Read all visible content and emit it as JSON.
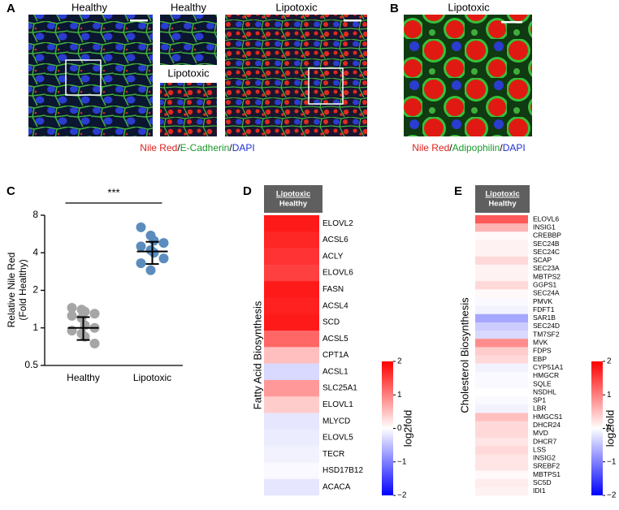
{
  "panels": [
    {
      "label": "A",
      "titles": [
        "Healthy",
        "Healthy",
        "Lipotoxic",
        "Lipotoxic"
      ],
      "caption": [
        "Nile Red",
        "/",
        "E-Cadherin",
        "/",
        "DAPI"
      ]
    },
    {
      "label": "B",
      "titles": [
        "Lipotoxic"
      ],
      "caption": [
        "Nile Red",
        "/",
        "Adipophilin",
        "/",
        "DAPI"
      ]
    }
  ],
  "chart_data": [
    {
      "type": "strip",
      "panel": "C",
      "annotation": "***",
      "y_label": [
        "Relative Nile Red",
        "(Fold Healthy)"
      ],
      "categories": [
        "Healthy",
        "Lipotoxic"
      ],
      "groups": [
        {
          "color": "#a6a6a6",
          "values": [
            1.45,
            1.4,
            1.35,
            1.3,
            1.25,
            1.2,
            1.05,
            1.0,
            0.95,
            0.9,
            0.85,
            0.75
          ],
          "mean": 1.0,
          "lower": 0.8,
          "upper": 1.22
        },
        {
          "color": "#5b8cbd",
          "values": [
            6.4,
            5.5,
            5.0,
            4.8,
            4.5,
            4.2,
            4.0,
            3.6,
            3.3,
            2.9
          ],
          "mean": 4.1,
          "lower": 3.25,
          "upper": 4.9
        }
      ],
      "log_scale": true,
      "ylim": [
        0.5,
        8
      ],
      "yticks": [
        0.5,
        1,
        2,
        4,
        8
      ]
    },
    {
      "type": "heatmap",
      "panel": "D",
      "header": [
        "Lipotoxic",
        "Healthy"
      ],
      "y_label": "Fatty Acid Biosynthesis",
      "categories": [
        "ELOVL2",
        "ACSL6",
        "ACLY",
        "ELOVL6",
        "FASN",
        "ACSL4",
        "SCD",
        "ACSL5",
        "CPT1A",
        "ACSL1",
        "SLC25A1",
        "ELOVL1",
        "MLYCD",
        "ELOVL5",
        "TECR",
        "HSD17B12",
        "ACACA"
      ],
      "values": [
        1.8,
        1.7,
        1.6,
        1.5,
        1.8,
        1.75,
        1.8,
        1.2,
        0.5,
        -0.3,
        0.8,
        0.4,
        -0.2,
        -0.15,
        -0.1,
        -0.05,
        -0.2
      ],
      "colormap": [
        "#0000ff",
        "#ffffff",
        "#ff0000"
      ],
      "clim": [
        -2,
        2
      ],
      "colorbar_label": "log2fold",
      "colorbar_ticks": [
        2,
        1,
        0,
        {
          "value": -1,
          "label": "−1"
        },
        {
          "value": -2,
          "label": "−2"
        }
      ]
    },
    {
      "type": "heatmap",
      "panel": "E",
      "header": [
        "Lipotoxic",
        "Healthy"
      ],
      "y_label": "Cholesterol Biosynthesis",
      "categories": [
        "ELOVL6",
        "INSIG1",
        "CREBBP",
        "SEC24B",
        "SEC24C",
        "SCAP",
        "SEC23A",
        "MBTPS2",
        "GGPS1",
        "SEC24A",
        "PMVK",
        "FDFT1",
        "SAR1B",
        "SEC24D",
        "TM7SF2",
        "MVK",
        "FDPS",
        "EBP",
        "CYP51A1",
        "HMGCR",
        "SQLE",
        "NSDHL",
        "SP1",
        "LBR",
        "HMGCS1",
        "DHCR24",
        "MVD",
        "DHCR7",
        "LSS",
        "INSIG2",
        "SREBF2",
        "MBTPS1",
        "SC5D",
        "IDI1"
      ],
      "values": [
        1.3,
        0.6,
        0.05,
        0.1,
        0.1,
        0.3,
        0.1,
        0.1,
        0.3,
        0.05,
        -0.05,
        -0.1,
        -0.7,
        -0.4,
        -0.3,
        0.9,
        0.4,
        0.3,
        -0.1,
        -0.05,
        -0.05,
        0,
        -0.05,
        -0.1,
        0.5,
        0.3,
        0.3,
        0.2,
        0.3,
        0.2,
        0.2,
        0.05,
        0.15,
        0.1
      ],
      "colormap": [
        "#0000ff",
        "#ffffff",
        "#ff0000"
      ],
      "clim": [
        -2,
        2
      ],
      "colorbar_label": "log2fold",
      "colorbar_ticks": [
        2,
        1,
        0,
        {
          "value": -1,
          "label": "−1"
        },
        {
          "value": -2,
          "label": "−2"
        }
      ]
    }
  ]
}
